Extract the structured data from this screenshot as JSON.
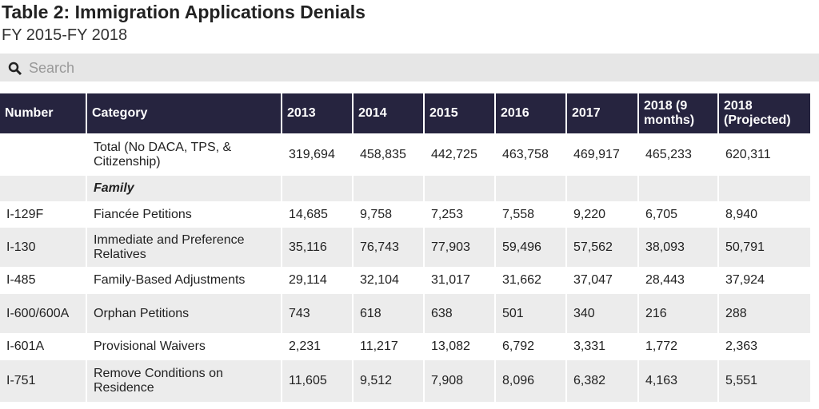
{
  "header": {
    "title": "Table 2: Immigration Applications Denials",
    "subtitle": "FY 2015-FY 2018"
  },
  "search": {
    "placeholder": "Search"
  },
  "table": {
    "columns": [
      "Number",
      "Category",
      "2013",
      "2014",
      "2015",
      "2016",
      "2017",
      "2018 (9 months)",
      "2018 (Projected)"
    ],
    "rows": [
      {
        "category": "Total (No DACA, TPS, & Citizenship)",
        "values": [
          "319,694",
          "458,835",
          "442,725",
          "463,758",
          "469,917",
          "465,233",
          "620,311"
        ]
      },
      {
        "section": "Family"
      },
      {
        "number": "I-129F",
        "category": "Fiancée Petitions",
        "values": [
          "14,685",
          "9,758",
          "7,253",
          "7,558",
          "9,220",
          "6,705",
          "8,940"
        ]
      },
      {
        "number": "I-130",
        "category": "Immediate and Preference Relatives",
        "values": [
          "35,116",
          "76,743",
          "77,903",
          "59,496",
          "57,562",
          "38,093",
          "50,791"
        ]
      },
      {
        "number": "I-485",
        "category": "Family-Based Adjustments",
        "values": [
          "29,114",
          "32,104",
          "31,017",
          "31,662",
          "37,047",
          "28,443",
          "37,924"
        ]
      },
      {
        "number": "I-600/600A",
        "category": "Orphan Petitions",
        "values": [
          "743",
          "618",
          "638",
          "501",
          "340",
          "216",
          "288"
        ]
      },
      {
        "number": "I-601A",
        "category": "Provisional Waivers",
        "values": [
          "2,231",
          "11,217",
          "13,082",
          "6,792",
          "3,331",
          "1,772",
          "2,363"
        ]
      },
      {
        "number": "I-751",
        "category": "Remove Conditions on Residence",
        "values": [
          "11,605",
          "9,512",
          "7,908",
          "8,096",
          "6,382",
          "4,163",
          "5,551"
        ]
      }
    ]
  }
}
